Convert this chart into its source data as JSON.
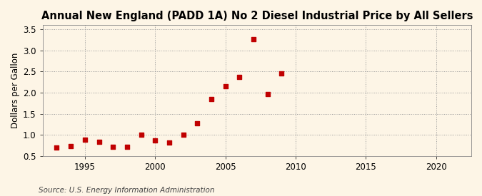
{
  "title": "Annual New England (PADD 1A) No 2 Diesel Industrial Price by All Sellers",
  "ylabel": "Dollars per Gallon",
  "source": "Source: U.S. Energy Information Administration",
  "background_color": "#fdf5e6",
  "years": [
    1993,
    1994,
    1995,
    1996,
    1997,
    1998,
    1999,
    2000,
    2001,
    2002,
    2003,
    2004,
    2005,
    2006,
    2007,
    2008,
    2009,
    2010
  ],
  "values": [
    0.7,
    0.73,
    0.88,
    0.83,
    0.72,
    0.71,
    1.01,
    0.87,
    0.81,
    1.01,
    1.28,
    1.85,
    2.15,
    2.37,
    3.26,
    1.97,
    2.45,
    null
  ],
  "marker_color": "#c00000",
  "marker_size": 18,
  "xlim": [
    1992.0,
    2022.5
  ],
  "ylim": [
    0.5,
    3.6
  ],
  "xticks": [
    1995,
    2000,
    2005,
    2010,
    2015,
    2020
  ],
  "yticks": [
    0.5,
    1.0,
    1.5,
    2.0,
    2.5,
    3.0,
    3.5
  ],
  "title_fontsize": 10.5,
  "axis_label_fontsize": 8.5,
  "tick_fontsize": 8.5,
  "source_fontsize": 7.5
}
